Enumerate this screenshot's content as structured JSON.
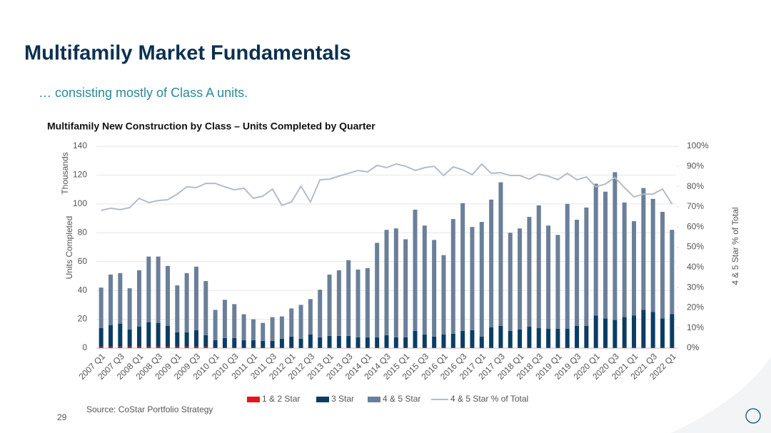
{
  "slide": {
    "title": "Multifamily Market Fundamentals",
    "subtitle": "… consisting mostly of Class A units.",
    "source": "Source: CoStar Portfolio Strategy",
    "page_number": "29"
  },
  "chart_data": {
    "type": "bar",
    "stacked": true,
    "title": "Multifamily New Construction by Class – Units Completed by Quarter",
    "y_label": "Units Completed",
    "y_unit_label": "Thousands",
    "y2_label": "4 & 5 Star % of Total",
    "categories": [
      "2007 Q1",
      null,
      "2007 Q3",
      null,
      "2008 Q1",
      null,
      "2008 Q3",
      null,
      "2009 Q1",
      null,
      "2009 Q3",
      null,
      "2010 Q1",
      null,
      "2010 Q3",
      null,
      "2011 Q1",
      null,
      "2011 Q3",
      null,
      "2012 Q1",
      null,
      "2012 Q3",
      null,
      "2013 Q1",
      null,
      "2013 Q3",
      null,
      "2014 Q1",
      null,
      "2014 Q3",
      null,
      "2015 Q1",
      null,
      "2015 Q3",
      null,
      "2016 Q1",
      null,
      "2016 Q3",
      null,
      "2017 Q1",
      null,
      "2017 Q3",
      null,
      "2018 Q1",
      null,
      "2018 Q3",
      null,
      "2019 Q1",
      null,
      "2019 Q3",
      null,
      "2020 Q1",
      null,
      "2020 Q3",
      null,
      "2021 Q1",
      null,
      "2021 Q3",
      null,
      "2022 Q1"
    ],
    "series": [
      {
        "name": "1 & 2 Star",
        "color": "#e8141c",
        "type": "bar",
        "values": [
          1,
          1,
          1,
          1,
          1,
          1,
          1,
          1,
          1,
          1,
          1,
          1,
          0.5,
          0.5,
          0.5,
          0.5,
          0.5,
          0.5,
          0.5,
          0.5,
          0.5,
          0.5,
          0.5,
          0.5,
          0.5,
          0.5,
          0.5,
          0.5,
          0.5,
          0.5,
          0.5,
          0.5,
          0.5,
          0.5,
          0.5,
          0.5,
          0.5,
          0.5,
          0.5,
          0.5,
          0.5,
          0.5,
          0.5,
          0.5,
          0.5,
          0.5,
          0.5,
          0.5,
          0.5,
          0.5,
          0.5,
          0.5,
          0.5,
          0.5,
          0.5,
          0.5,
          0.5,
          0.5,
          0.5,
          0.5,
          0.5
        ]
      },
      {
        "name": "3 Star",
        "color": "#0b3d63",
        "type": "bar",
        "values": [
          13,
          15,
          16,
          12,
          14,
          17,
          16.5,
          14.5,
          10,
          10,
          11.5,
          8,
          5,
          6.5,
          6.5,
          5,
          5,
          4.5,
          4.5,
          6,
          7.5,
          6,
          9,
          7,
          8,
          8,
          8,
          7,
          7,
          7,
          8.5,
          7,
          7,
          11.5,
          9,
          7.5,
          9,
          9.5,
          11.5,
          12,
          7.5,
          14,
          15,
          11.5,
          12.5,
          14.5,
          13.5,
          13,
          13,
          13,
          15,
          15,
          22,
          20,
          19,
          21,
          22,
          26,
          24.5,
          20,
          23
        ]
      },
      {
        "name": "4 & 5 Star",
        "color": "#6b7f99",
        "type": "bar",
        "values": [
          28,
          35,
          35,
          28.5,
          39,
          45.5,
          46,
          41.5,
          32.5,
          41,
          44,
          37.5,
          21,
          26.5,
          23.5,
          18,
          14.5,
          12.5,
          16.5,
          15.5,
          19.5,
          23.5,
          24.5,
          33,
          42.5,
          45.5,
          52.5,
          47,
          48,
          65.5,
          73,
          75.5,
          68,
          84,
          75.5,
          67,
          55,
          79.5,
          88.5,
          71.5,
          79.5,
          88.5,
          99.5,
          68,
          70,
          76,
          85,
          71.5,
          65,
          86.5,
          73.5,
          82,
          91.5,
          88,
          102.5,
          79.5,
          65.5,
          84.5,
          78.5,
          74,
          58.5
        ]
      },
      {
        "name": "4 & 5 Star % of Total",
        "color": "#b4bcc6",
        "type": "line",
        "axis": "y2",
        "values": [
          68.2,
          69.3,
          68.6,
          69.6,
          74.2,
          72.1,
          73.1,
          73.5,
          76.3,
          79.9,
          79.5,
          81.6,
          81.6,
          79.9,
          78.4,
          79.2,
          74.2,
          75.3,
          78.8,
          70.7,
          72.4,
          80.2,
          72.4,
          83.4,
          83.7,
          85.2,
          86.6,
          88,
          87.3,
          90.5,
          89.4,
          91.2,
          90.1,
          88,
          89.4,
          90.1,
          85.5,
          89.8,
          88.3,
          85.9,
          91.2,
          86.6,
          86.9,
          85.5,
          85.5,
          83.7,
          86.2,
          85.2,
          83.4,
          86.6,
          83.4,
          84.8,
          79.9,
          81.3,
          84.5,
          79.5,
          74.9,
          76.3,
          76.3,
          78.8,
          71.4
        ]
      }
    ],
    "ylim": [
      0,
      140
    ],
    "yticks": [
      0,
      20,
      40,
      60,
      80,
      100,
      120,
      140
    ],
    "y2lim": [
      0,
      100
    ],
    "y2ticks": [
      {
        "value": 0,
        "label": "0%"
      },
      {
        "value": 10,
        "label": "10%"
      },
      {
        "value": 20,
        "label": "20%"
      },
      {
        "value": 30,
        "label": "30%"
      },
      {
        "value": 40,
        "label": "40%"
      },
      {
        "value": 50,
        "label": "50%"
      },
      {
        "value": 60,
        "label": "60%"
      },
      {
        "value": 70,
        "label": "70%"
      },
      {
        "value": 80,
        "label": "80%"
      },
      {
        "value": 90,
        "label": "90%"
      },
      {
        "value": 100,
        "label": "100%"
      }
    ],
    "grid": true,
    "legend": "bottom"
  }
}
